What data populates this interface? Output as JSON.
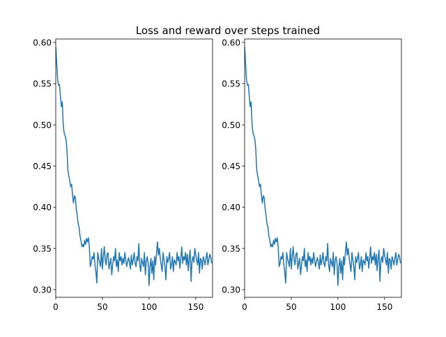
{
  "chart_data": [
    {
      "type": "line",
      "title": "Loss and reward over steps trained",
      "color": "#1f77b4",
      "xlim": [
        0,
        168
      ],
      "ylim": [
        0.2907,
        0.6042
      ],
      "xticks": [
        0,
        50,
        100,
        150
      ],
      "yticks": [
        {
          "value": 0.3,
          "label": "0.30"
        },
        0.35,
        {
          "value": 0.4,
          "label": "0.40"
        },
        0.45,
        {
          "value": 0.5,
          "label": "0.50"
        },
        0.55,
        {
          "value": 0.6,
          "label": "0.60"
        }
      ],
      "x": [
        0,
        1,
        2,
        3,
        4,
        5,
        6,
        7,
        8,
        9,
        10,
        11,
        12,
        13,
        14,
        15,
        16,
        17,
        18,
        19,
        20,
        21,
        22,
        23,
        24,
        25,
        26,
        27,
        28,
        29,
        30,
        31,
        32,
        33,
        34,
        35,
        36,
        37,
        38,
        39,
        40,
        41,
        42,
        43,
        44,
        45,
        46,
        47,
        48,
        49,
        50,
        51,
        52,
        53,
        54,
        55,
        56,
        57,
        58,
        59,
        60,
        61,
        62,
        63,
        64,
        65,
        66,
        67,
        68,
        69,
        70,
        71,
        72,
        73,
        74,
        75,
        76,
        77,
        78,
        79,
        80,
        81,
        82,
        83,
        84,
        85,
        86,
        87,
        88,
        89,
        90,
        91,
        92,
        93,
        94,
        95,
        96,
        97,
        98,
        99,
        100,
        101,
        102,
        103,
        104,
        105,
        106,
        107,
        108,
        109,
        110,
        111,
        112,
        113,
        114,
        115,
        116,
        117,
        118,
        119,
        120,
        121,
        122,
        123,
        124,
        125,
        126,
        127,
        128,
        129,
        130,
        131,
        132,
        133,
        134,
        135,
        136,
        137,
        138,
        139,
        140,
        141,
        142,
        143,
        144,
        145,
        146,
        147,
        148,
        149,
        150,
        151,
        152,
        153,
        154,
        155,
        156,
        157,
        158,
        159,
        160,
        161,
        162,
        163,
        164,
        165,
        166,
        167
      ],
      "values": [
        0.595,
        0.575,
        0.555,
        0.548,
        0.549,
        0.535,
        0.522,
        0.528,
        0.5,
        0.49,
        0.487,
        0.482,
        0.47,
        0.445,
        0.438,
        0.432,
        0.425,
        0.428,
        0.415,
        0.405,
        0.414,
        0.412,
        0.398,
        0.39,
        0.38,
        0.376,
        0.365,
        0.36,
        0.352,
        0.355,
        0.352,
        0.36,
        0.355,
        0.362,
        0.358,
        0.363,
        0.352,
        0.328,
        0.332,
        0.34,
        0.337,
        0.345,
        0.33,
        0.322,
        0.308,
        0.345,
        0.338,
        0.333,
        0.328,
        0.35,
        0.325,
        0.34,
        0.352,
        0.336,
        0.33,
        0.343,
        0.345,
        0.325,
        0.332,
        0.338,
        0.318,
        0.33,
        0.34,
        0.335,
        0.35,
        0.328,
        0.336,
        0.322,
        0.345,
        0.335,
        0.34,
        0.33,
        0.338,
        0.332,
        0.345,
        0.336,
        0.328,
        0.334,
        0.339,
        0.333,
        0.325,
        0.342,
        0.33,
        0.336,
        0.345,
        0.332,
        0.328,
        0.34,
        0.335,
        0.356,
        0.33,
        0.322,
        0.338,
        0.333,
        0.328,
        0.345,
        0.318,
        0.335,
        0.34,
        0.332,
        0.305,
        0.328,
        0.338,
        0.32,
        0.335,
        0.312,
        0.34,
        0.33,
        0.345,
        0.358,
        0.342,
        0.35,
        0.338,
        0.33,
        0.322,
        0.345,
        0.336,
        0.328,
        0.312,
        0.34,
        0.333,
        0.338,
        0.345,
        0.325,
        0.33,
        0.34,
        0.322,
        0.336,
        0.334,
        0.33,
        0.345,
        0.335,
        0.34,
        0.326,
        0.338,
        0.352,
        0.332,
        0.34,
        0.336,
        0.345,
        0.33,
        0.343,
        0.323,
        0.338,
        0.348,
        0.31,
        0.335,
        0.34,
        0.333,
        0.35,
        0.342,
        0.336,
        0.33,
        0.345,
        0.32,
        0.338,
        0.336,
        0.325,
        0.34,
        0.336,
        0.33,
        0.338,
        0.345,
        0.33,
        0.336,
        0.343,
        0.34,
        0.332
      ]
    },
    {
      "type": "line",
      "color": "#1f77b4",
      "xlim": [
        0,
        168
      ],
      "ylim": [
        0.2907,
        0.6042
      ],
      "xticks": [
        0,
        50,
        100,
        150
      ],
      "yticks": [
        {
          "value": 0.3,
          "label": "0.30"
        },
        0.35,
        {
          "value": 0.4,
          "label": "0.40"
        },
        0.45,
        {
          "value": 0.5,
          "label": "0.50"
        },
        0.55,
        {
          "value": 0.6,
          "label": "0.60"
        }
      ],
      "x": [
        0,
        1,
        2,
        3,
        4,
        5,
        6,
        7,
        8,
        9,
        10,
        11,
        12,
        13,
        14,
        15,
        16,
        17,
        18,
        19,
        20,
        21,
        22,
        23,
        24,
        25,
        26,
        27,
        28,
        29,
        30,
        31,
        32,
        33,
        34,
        35,
        36,
        37,
        38,
        39,
        40,
        41,
        42,
        43,
        44,
        45,
        46,
        47,
        48,
        49,
        50,
        51,
        52,
        53,
        54,
        55,
        56,
        57,
        58,
        59,
        60,
        61,
        62,
        63,
        64,
        65,
        66,
        67,
        68,
        69,
        70,
        71,
        72,
        73,
        74,
        75,
        76,
        77,
        78,
        79,
        80,
        81,
        82,
        83,
        84,
        85,
        86,
        87,
        88,
        89,
        90,
        91,
        92,
        93,
        94,
        95,
        96,
        97,
        98,
        99,
        100,
        101,
        102,
        103,
        104,
        105,
        106,
        107,
        108,
        109,
        110,
        111,
        112,
        113,
        114,
        115,
        116,
        117,
        118,
        119,
        120,
        121,
        122,
        123,
        124,
        125,
        126,
        127,
        128,
        129,
        130,
        131,
        132,
        133,
        134,
        135,
        136,
        137,
        138,
        139,
        140,
        141,
        142,
        143,
        144,
        145,
        146,
        147,
        148,
        149,
        150,
        151,
        152,
        153,
        154,
        155,
        156,
        157,
        158,
        159,
        160,
        161,
        162,
        163,
        164,
        165,
        166,
        167
      ],
      "values": [
        0.595,
        0.575,
        0.555,
        0.548,
        0.549,
        0.535,
        0.522,
        0.528,
        0.5,
        0.49,
        0.487,
        0.482,
        0.47,
        0.445,
        0.438,
        0.432,
        0.425,
        0.428,
        0.415,
        0.405,
        0.414,
        0.412,
        0.398,
        0.39,
        0.38,
        0.376,
        0.365,
        0.36,
        0.352,
        0.355,
        0.352,
        0.36,
        0.355,
        0.362,
        0.358,
        0.363,
        0.352,
        0.328,
        0.332,
        0.34,
        0.337,
        0.345,
        0.33,
        0.322,
        0.308,
        0.345,
        0.338,
        0.333,
        0.328,
        0.35,
        0.325,
        0.34,
        0.352,
        0.336,
        0.33,
        0.343,
        0.345,
        0.325,
        0.332,
        0.338,
        0.318,
        0.33,
        0.34,
        0.335,
        0.35,
        0.328,
        0.336,
        0.322,
        0.345,
        0.335,
        0.34,
        0.33,
        0.338,
        0.332,
        0.345,
        0.336,
        0.328,
        0.334,
        0.339,
        0.333,
        0.325,
        0.342,
        0.33,
        0.336,
        0.345,
        0.332,
        0.328,
        0.34,
        0.335,
        0.356,
        0.33,
        0.322,
        0.338,
        0.333,
        0.328,
        0.345,
        0.318,
        0.335,
        0.34,
        0.332,
        0.305,
        0.328,
        0.338,
        0.32,
        0.335,
        0.312,
        0.34,
        0.33,
        0.345,
        0.358,
        0.342,
        0.35,
        0.338,
        0.33,
        0.322,
        0.345,
        0.336,
        0.328,
        0.312,
        0.34,
        0.333,
        0.338,
        0.345,
        0.325,
        0.33,
        0.34,
        0.322,
        0.336,
        0.334,
        0.33,
        0.345,
        0.335,
        0.34,
        0.326,
        0.338,
        0.352,
        0.332,
        0.34,
        0.336,
        0.345,
        0.33,
        0.343,
        0.323,
        0.338,
        0.348,
        0.31,
        0.335,
        0.34,
        0.333,
        0.35,
        0.342,
        0.336,
        0.33,
        0.345,
        0.32,
        0.338,
        0.336,
        0.325,
        0.34,
        0.336,
        0.33,
        0.338,
        0.345,
        0.33,
        0.336,
        0.343,
        0.34,
        0.332
      ]
    }
  ]
}
